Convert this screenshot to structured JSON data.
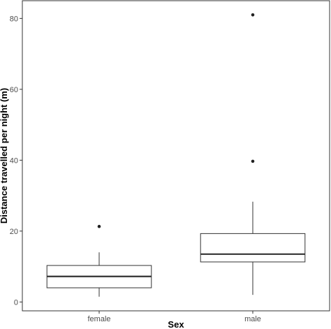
{
  "chart_data": {
    "type": "boxplot",
    "title": "",
    "xlabel": "Sex",
    "ylabel": "Distance travelled per night (m)",
    "ylim": [
      -2.5,
      85
    ],
    "yticks": [
      0,
      20,
      40,
      60,
      80
    ],
    "grid": false,
    "categories": [
      "female",
      "male"
    ],
    "boxes": [
      {
        "category": "female",
        "whisker_low": 1.5,
        "q1": 4.0,
        "median": 7.2,
        "q3": 10.3,
        "whisker_high": 14.0,
        "outliers": [
          21.3
        ]
      },
      {
        "category": "male",
        "whisker_low": 2.0,
        "q1": 11.3,
        "median": 13.5,
        "q3": 19.3,
        "whisker_high": 28.3,
        "outliers": [
          39.7,
          81.0
        ]
      }
    ]
  }
}
